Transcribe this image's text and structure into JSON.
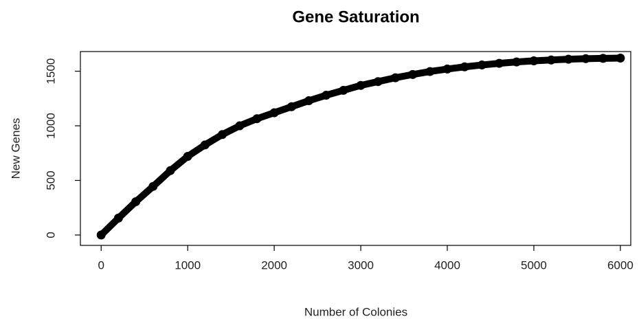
{
  "chart_data": {
    "type": "scatter",
    "title": "Gene Saturation",
    "x_label": "Number of Colonies",
    "y_label": "New Genes",
    "series": [
      {
        "name": "",
        "color": "#000000",
        "x": [
          0,
          200,
          400,
          600,
          800,
          1000,
          1200,
          1400,
          1600,
          1800,
          2000,
          2200,
          2400,
          2600,
          2800,
          3000,
          3200,
          3400,
          3600,
          3800,
          4000,
          4200,
          4400,
          4600,
          4800,
          5000,
          5200,
          5400,
          5600,
          5800,
          6000
        ],
        "values": [
          0,
          155,
          305,
          445,
          590,
          720,
          825,
          920,
          1000,
          1065,
          1120,
          1175,
          1230,
          1280,
          1325,
          1370,
          1405,
          1440,
          1470,
          1497,
          1520,
          1540,
          1557,
          1572,
          1585,
          1595,
          1603,
          1610,
          1615,
          1618,
          1620
        ]
      }
    ],
    "xlim": [
      -240,
      6120
    ],
    "xticks": [
      0,
      1000,
      2000,
      3000,
      4000,
      5000,
      6000
    ],
    "ylim": [
      -95,
      1680
    ],
    "yticks": [
      0,
      500,
      1000,
      1500
    ]
  }
}
